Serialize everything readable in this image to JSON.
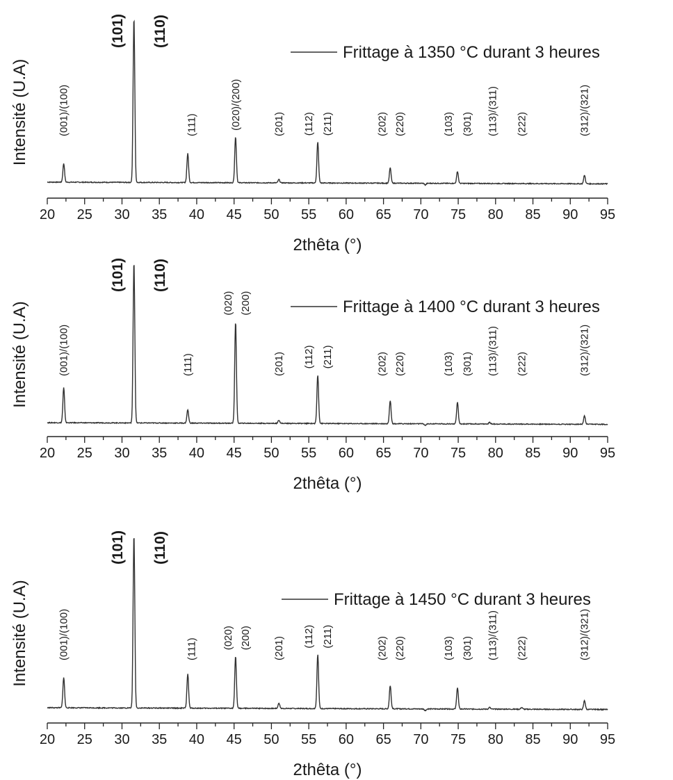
{
  "chart_data": [
    {
      "type": "line",
      "title": "",
      "xlabel": "2thêta (°)",
      "ylabel": "Intensité (U.A)",
      "xlim": [
        20,
        95
      ],
      "xticks": [
        "20",
        "25",
        "30",
        "35",
        "40",
        "45",
        "50",
        "55",
        "60",
        "65",
        "70",
        "75",
        "80",
        "85",
        "90",
        "95"
      ],
      "legend": "Frittage à 1350 °C durant 3 heures",
      "legend_position": "top-right",
      "grid": false,
      "series": [
        {
          "name": "Frittage à 1350 °C durant 3 heures",
          "baseline": 3,
          "peaks": [
            {
              "x": 22.2,
              "y": 14
            },
            {
              "x": 31.6,
              "y": 100
            },
            {
              "x": 38.8,
              "y": 20
            },
            {
              "x": 45.2,
              "y": 30
            },
            {
              "x": 51.0,
              "y": 5
            },
            {
              "x": 56.2,
              "y": 27
            },
            {
              "x": 65.9,
              "y": 12
            },
            {
              "x": 70.6,
              "y": 2
            },
            {
              "x": 74.9,
              "y": 10
            },
            {
              "x": 79.2,
              "y": 3
            },
            {
              "x": 83.5,
              "y": 3
            },
            {
              "x": 91.9,
              "y": 8
            }
          ]
        }
      ],
      "annotations": [
        {
          "text": "(001)/(100)",
          "x": 22.2,
          "bold": false
        },
        {
          "text": "(101)",
          "x": 29.3,
          "bold": true
        },
        {
          "text": "(110)",
          "x": 35.0,
          "bold": true
        },
        {
          "text": "(111)",
          "x": 39.3,
          "bold": false
        },
        {
          "text": "(020)/(200)",
          "x": 45.2,
          "bold": false
        },
        {
          "text": "(201)",
          "x": 51.0,
          "bold": false
        },
        {
          "text": "(112)",
          "x": 55.0,
          "bold": false
        },
        {
          "text": "(211)",
          "x": 57.5,
          "bold": false
        },
        {
          "text": "(202)",
          "x": 64.8,
          "bold": false
        },
        {
          "text": "(220)",
          "x": 67.2,
          "bold": false
        },
        {
          "text": "(103)",
          "x": 73.7,
          "bold": false
        },
        {
          "text": "(301)",
          "x": 76.2,
          "bold": false
        },
        {
          "text": "(113)/(311)",
          "x": 79.6,
          "bold": false
        },
        {
          "text": "(222)",
          "x": 83.5,
          "bold": false
        },
        {
          "text": "(312)/(321)",
          "x": 91.9,
          "bold": false
        }
      ]
    },
    {
      "type": "line",
      "title": "",
      "xlabel": "2thêta (°)",
      "ylabel": "Intensité (U.A)",
      "xlim": [
        20,
        95
      ],
      "xticks": [
        "20",
        "25",
        "30",
        "35",
        "40",
        "45",
        "50",
        "55",
        "60",
        "65",
        "70",
        "75",
        "80",
        "85",
        "90",
        "95"
      ],
      "legend": "Frittage à 1400 °C durant 3 heures",
      "legend_position": "top-right",
      "grid": false,
      "series": [
        {
          "name": "Frittage à 1400 °C durant 3 heures",
          "baseline": 3,
          "peaks": [
            {
              "x": 22.2,
              "y": 24
            },
            {
              "x": 31.6,
              "y": 100
            },
            {
              "x": 38.8,
              "y": 11
            },
            {
              "x": 45.2,
              "y": 64
            },
            {
              "x": 51.0,
              "y": 5
            },
            {
              "x": 56.2,
              "y": 32
            },
            {
              "x": 65.9,
              "y": 17
            },
            {
              "x": 70.6,
              "y": 2
            },
            {
              "x": 74.9,
              "y": 16
            },
            {
              "x": 79.2,
              "y": 4
            },
            {
              "x": 83.5,
              "y": 3
            },
            {
              "x": 91.9,
              "y": 8
            }
          ]
        }
      ],
      "annotations": [
        {
          "text": "(001)/(100)",
          "x": 22.2,
          "bold": false
        },
        {
          "text": "(101)",
          "x": 29.3,
          "bold": true
        },
        {
          "text": "(110)",
          "x": 35.0,
          "bold": true
        },
        {
          "text": "(111)",
          "x": 38.8,
          "bold": false
        },
        {
          "text": "(020)",
          "x": 44.2,
          "bold": false
        },
        {
          "text": "(200)",
          "x": 46.5,
          "bold": false
        },
        {
          "text": "(201)",
          "x": 51.0,
          "bold": false
        },
        {
          "text": "(112)",
          "x": 55.0,
          "bold": false
        },
        {
          "text": "(211)",
          "x": 57.5,
          "bold": false
        },
        {
          "text": "(202)",
          "x": 64.8,
          "bold": false
        },
        {
          "text": "(220)",
          "x": 67.2,
          "bold": false
        },
        {
          "text": "(103)",
          "x": 73.7,
          "bold": false
        },
        {
          "text": "(301)",
          "x": 76.2,
          "bold": false
        },
        {
          "text": "(113)/(311)",
          "x": 79.6,
          "bold": false
        },
        {
          "text": "(222)",
          "x": 83.5,
          "bold": false
        },
        {
          "text": "(312)/(321)",
          "x": 91.9,
          "bold": false
        }
      ]
    },
    {
      "type": "line",
      "title": "",
      "xlabel": "2thêta (°)",
      "ylabel": "Intensité (U.A)",
      "xlim": [
        20,
        95
      ],
      "xticks": [
        "20",
        "25",
        "30",
        "35",
        "40",
        "45",
        "50",
        "55",
        "60",
        "65",
        "70",
        "75",
        "80",
        "85",
        "90",
        "95"
      ],
      "legend": "Frittage à 1450 °C durant 3 heures",
      "legend_position": "top-right",
      "grid": false,
      "series": [
        {
          "name": "Frittage à 1450 °C durant 3 heures",
          "baseline": 3,
          "peaks": [
            {
              "x": 22.2,
              "y": 20
            },
            {
              "x": 31.6,
              "y": 100
            },
            {
              "x": 38.8,
              "y": 22
            },
            {
              "x": 45.2,
              "y": 32
            },
            {
              "x": 51.0,
              "y": 6
            },
            {
              "x": 56.2,
              "y": 33
            },
            {
              "x": 65.9,
              "y": 16
            },
            {
              "x": 70.6,
              "y": 2
            },
            {
              "x": 74.9,
              "y": 15
            },
            {
              "x": 79.2,
              "y": 4
            },
            {
              "x": 83.5,
              "y": 4
            },
            {
              "x": 91.9,
              "y": 8
            }
          ]
        }
      ],
      "annotations": [
        {
          "text": "(001)/(100)",
          "x": 22.2,
          "bold": false
        },
        {
          "text": "(101)",
          "x": 29.3,
          "bold": true
        },
        {
          "text": "(110)",
          "x": 35.0,
          "bold": true
        },
        {
          "text": "(111)",
          "x": 39.3,
          "bold": false
        },
        {
          "text": "(020)",
          "x": 44.2,
          "bold": false
        },
        {
          "text": "(200)",
          "x": 46.5,
          "bold": false
        },
        {
          "text": "(201)",
          "x": 51.0,
          "bold": false
        },
        {
          "text": "(112)",
          "x": 55.0,
          "bold": false
        },
        {
          "text": "(211)",
          "x": 57.5,
          "bold": false
        },
        {
          "text": "(202)",
          "x": 64.8,
          "bold": false
        },
        {
          "text": "(220)",
          "x": 67.2,
          "bold": false
        },
        {
          "text": "(103)",
          "x": 73.7,
          "bold": false
        },
        {
          "text": "(301)",
          "x": 76.2,
          "bold": false
        },
        {
          "text": "(113)/(311)",
          "x": 79.6,
          "bold": false
        },
        {
          "text": "(222)",
          "x": 83.5,
          "bold": false
        },
        {
          "text": "(312)/(321)",
          "x": 91.9,
          "bold": false
        }
      ]
    }
  ]
}
